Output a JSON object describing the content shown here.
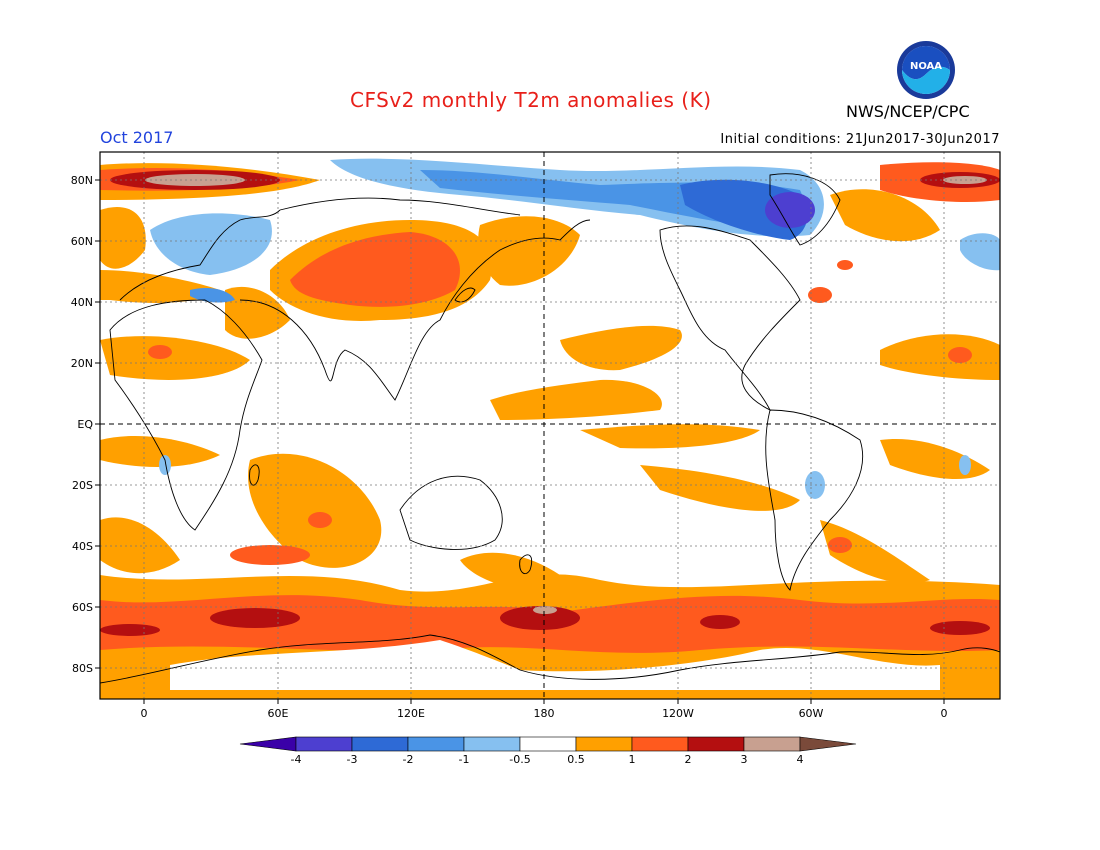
{
  "header": {
    "title": "CFSv2 monthly T2m anomalies (K)",
    "agency": "NWS/NCEP/CPC",
    "month": "Oct 2017",
    "initial_conditions": "Initial conditions: 21Jun2017-30Jun2017",
    "logo_text": "NOAA"
  },
  "lat_labels": [
    "80N",
    "60N",
    "40N",
    "20N",
    "EQ",
    "20S",
    "40S",
    "60S",
    "80S"
  ],
  "lon_labels": [
    "0",
    "60E",
    "120E",
    "180",
    "120W",
    "60W",
    "0"
  ],
  "colorbar": {
    "labels": [
      "-4",
      "-3",
      "-2",
      "-1",
      "-0.5",
      "0.5",
      "1",
      "2",
      "3",
      "4"
    ],
    "colors": [
      "#3a00a8",
      "#4d3fd0",
      "#2e6ad6",
      "#4a94e6",
      "#86c0f0",
      "#ffffff",
      "#ffa000",
      "#ff5a1e",
      "#b40f10",
      "#c8a090",
      "#7a4a3a"
    ]
  },
  "colors": {
    "title": "#e8201a",
    "month": "#2244dd",
    "cold_light": "#86c0f0",
    "cold_mid": "#4a94e6",
    "cold_dark": "#2e6ad6",
    "warm_light": "#ffa000",
    "warm_mid": "#ff5a1e",
    "warm_dark": "#b40f10"
  }
}
